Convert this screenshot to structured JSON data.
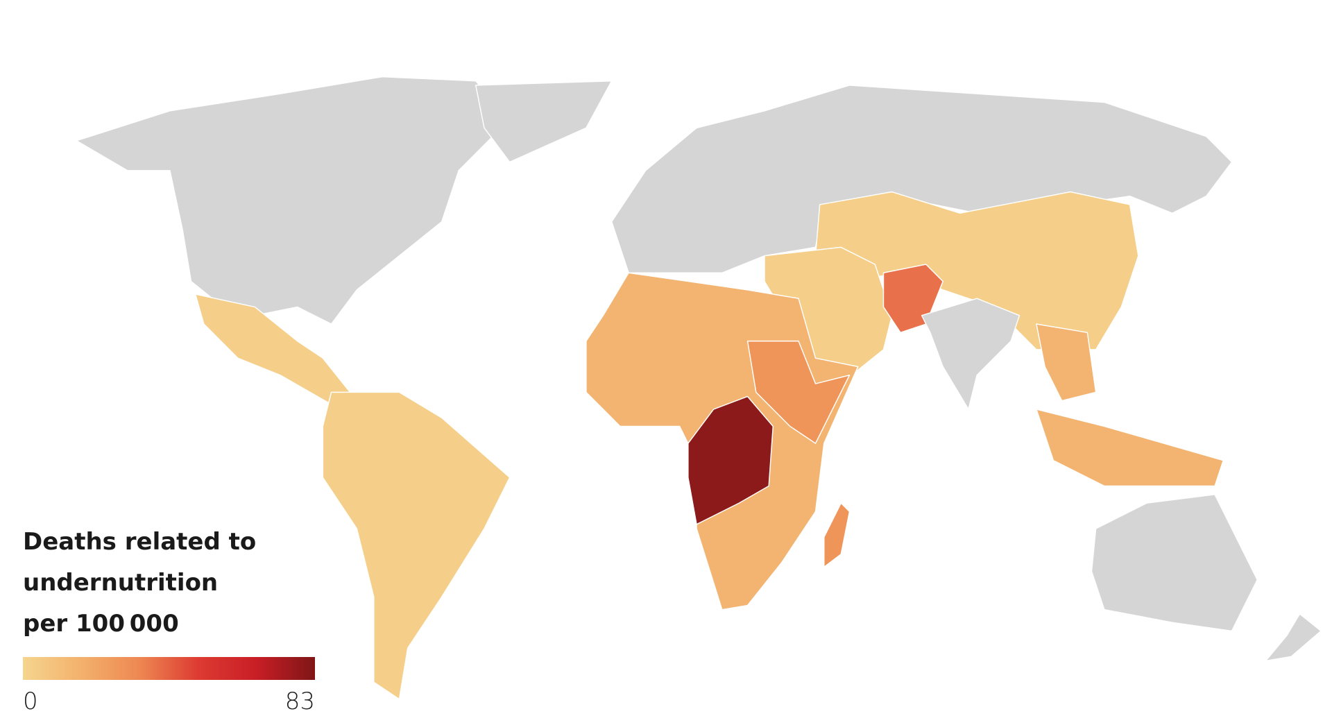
{
  "legend": {
    "title_lines": [
      "Deaths related to",
      "undernutrition",
      "per 100 000"
    ],
    "scale": {
      "lim": [
        0,
        83
      ],
      "ticks": [
        0,
        83
      ],
      "colors": [
        "#f5d58e",
        "#f3b16c",
        "#ee8752",
        "#dd3b32",
        "#c81e26",
        "#7e1616"
      ]
    }
  }
}
